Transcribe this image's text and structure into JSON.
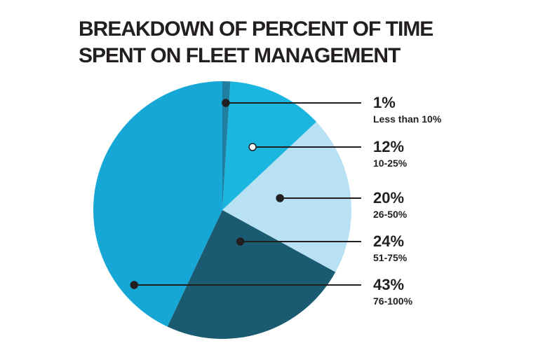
{
  "chart_data": {
    "type": "pie",
    "title": "BREAKDOWN OF PERCENT OF TIME SPENT ON FLEET MANAGEMENT",
    "title_lines": [
      "BREAKDOWN OF PERCENT OF TIME",
      "SPENT ON FLEET MANAGEMENT"
    ],
    "slices": [
      {
        "label": "Less than 10%",
        "value": 1,
        "value_label": "1%",
        "color": "#1e7fa0"
      },
      {
        "label": "10-25%",
        "value": 12,
        "value_label": "12%",
        "color": "#1bb6df"
      },
      {
        "label": "26-50%",
        "value": 20,
        "value_label": "20%",
        "color": "#b8e1f3"
      },
      {
        "label": "51-75%",
        "value": 24,
        "value_label": "24%",
        "color": "#1a5b72"
      },
      {
        "label": "76-100%",
        "value": 43,
        "value_label": "43%",
        "color": "#16a7d6"
      }
    ],
    "legend_placement": "right",
    "start": "top",
    "direction": "clockwise"
  }
}
